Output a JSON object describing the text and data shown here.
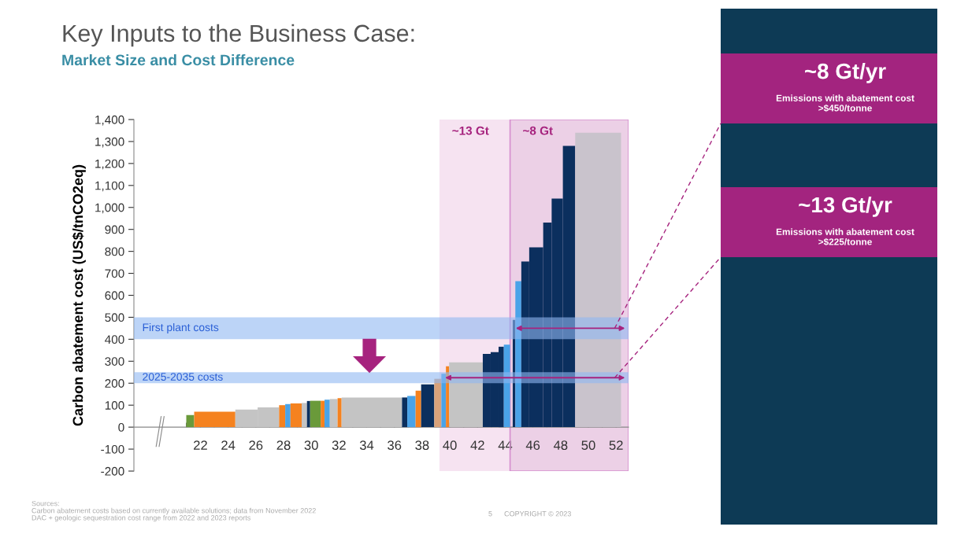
{
  "chart_data": {
    "type": "histogram",
    "title": "Key Inputs to the Business Case:",
    "subtitle": "Market Size and Cost Difference",
    "ylabel": "Carbon abatement cost (US$/tnCO2eq)",
    "bins": [
      20.98,
      21.55,
      24.52,
      26.13,
      27.68,
      28.12,
      28.5,
      29.31,
      29.69,
      29.92,
      30.68,
      30.96,
      31.34,
      31.9,
      32.19,
      36.55,
      36.93,
      37.53,
      37.93,
      38.88,
      39.39,
      39.72,
      39.95,
      42.38,
      42.95,
      43.52,
      43.9,
      44.35,
      44.54,
      44.73,
      45.16,
      45.73,
      46.74,
      47.35,
      48.16,
      49.05,
      52.36
    ],
    "values": [
      55,
      70,
      80,
      90,
      100,
      105,
      108,
      110,
      119,
      120,
      120,
      125,
      128,
      132,
      135,
      135,
      142,
      166,
      195,
      220,
      243,
      277,
      295,
      333,
      341,
      366,
      375,
      null,
      488,
      664,
      754,
      818,
      931,
      1040,
      1280,
      1340
    ],
    "colors": [
      "#6a9a3a",
      "#f5821f",
      "#c4c4c4",
      "#c4c4c4",
      "#f5821f",
      "#4aa3e8",
      "#f5821f",
      "#c4c4c4",
      "#0b2f5e",
      "#6a9a3a",
      "#f5821f",
      "#4aa3e8",
      "#c4c4c4",
      "#f5821f",
      "#c4c4c4",
      "#0b2f5e",
      "#4aa3e8",
      "#f5821f",
      "#0b2f5e",
      "#d9a27a",
      "#4aa3e8",
      "#f5821f",
      "#c4c4c4",
      "#0b2f5e",
      "#0b2f5e",
      "#0b2f5e",
      "#4aa3e8",
      null,
      "#0b2f5e",
      "#4aa3e8",
      "#0b2f5e",
      "#0b2f5e",
      "#0b2f5e",
      "#0b2f5e",
      "#0b2f5e",
      "#c9c3cc"
    ],
    "xlim": [
      17.2,
      52.9
    ],
    "xticks": [
      {
        "value": 21,
        "label": null
      },
      22,
      {
        "value": 23,
        "label": null
      },
      24,
      {
        "value": 25,
        "label": null
      },
      26,
      {
        "value": 27,
        "label": null
      },
      28,
      {
        "value": 29,
        "label": null
      },
      30,
      {
        "value": 31,
        "label": null
      },
      32,
      {
        "value": 33,
        "label": null
      },
      34,
      {
        "value": 35,
        "label": null
      },
      36,
      {
        "value": 37,
        "label": null
      },
      38,
      {
        "value": 39,
        "label": null
      },
      40,
      {
        "value": 41,
        "label": null
      },
      42,
      {
        "value": 43,
        "label": null
      },
      44,
      {
        "value": 45,
        "label": null
      },
      46,
      {
        "value": 47,
        "label": null
      },
      48,
      {
        "value": 49,
        "label": null
      },
      50,
      {
        "value": 51,
        "label": null
      },
      52
    ],
    "ylim": [
      -200,
      1400
    ],
    "yticks": [
      -200,
      -100,
      0,
      100,
      200,
      300,
      400,
      500,
      600,
      700,
      800,
      900,
      {
        "value": 1000,
        "label": "1,000"
      },
      {
        "value": 1100,
        "label": "1,100"
      },
      {
        "value": 1200,
        "label": "1,200"
      },
      {
        "value": 1300,
        "label": "1,300"
      },
      {
        "value": 1400,
        "label": "1,400"
      }
    ],
    "bands": [
      {
        "axis": "y",
        "from": 400,
        "to": 500,
        "label": "First plant costs",
        "color": "#8fb8f2"
      },
      {
        "axis": "y",
        "from": 200,
        "to": 250,
        "label": "2025-2035 costs",
        "color": "#8fb8f2"
      },
      {
        "axis": "x",
        "from": 39.25,
        "to": 52.9,
        "label": "~13 Gt",
        "color": "#f6e3f1"
      },
      {
        "axis": "x",
        "from": 44.35,
        "to": 52.9,
        "label": "~8 Gt",
        "color": "#ecd0e6"
      }
    ],
    "annotations": [
      "~8 Gt/yr",
      "Emissions with abatement cost\n>$450/tonne",
      "~13 Gt/yr",
      "Emissions with abatement cost\n>$225/tonne",
      "Sources:\nCarbon abatement costs based on currently available solutions; data from November 2022\nDAC + geologic sequestration cost range from 2022 and 2023 reports",
      "5      COPYRIGHT © 2023"
    ],
    "grid": false,
    "legend": false
  }
}
